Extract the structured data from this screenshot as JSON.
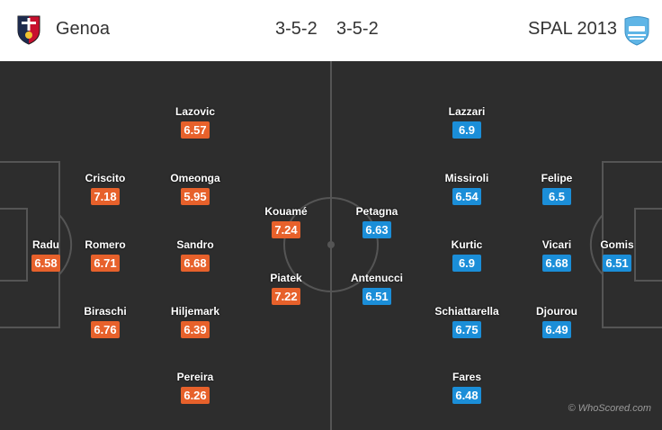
{
  "header": {
    "home_team": "Genoa",
    "home_formation": "3-5-2",
    "away_formation": "3-5-2",
    "away_team": "SPAL 2013",
    "home_crest_icon": "genoa-crest-icon",
    "away_crest_icon": "spal-crest-icon"
  },
  "colors": {
    "home_rating": "#e7612b",
    "away_rating": "#1b8ed8",
    "pitch": "#2d2d2d"
  },
  "home_players": [
    {
      "name": "Radu",
      "rating": "6.58"
    },
    {
      "name": "Criscito",
      "rating": "7.18"
    },
    {
      "name": "Romero",
      "rating": "6.71"
    },
    {
      "name": "Biraschi",
      "rating": "6.76"
    },
    {
      "name": "Lazovic",
      "rating": "6.57"
    },
    {
      "name": "Omeonga",
      "rating": "5.95"
    },
    {
      "name": "Sandro",
      "rating": "6.68"
    },
    {
      "name": "Hiljemark",
      "rating": "6.39"
    },
    {
      "name": "Pereira",
      "rating": "6.26"
    },
    {
      "name": "Kouamé",
      "rating": "7.24"
    },
    {
      "name": "Piatek",
      "rating": "7.22"
    }
  ],
  "away_players": [
    {
      "name": "Gomis",
      "rating": "6.51"
    },
    {
      "name": "Felipe",
      "rating": "6.5"
    },
    {
      "name": "Vicari",
      "rating": "6.68"
    },
    {
      "name": "Djourou",
      "rating": "6.49"
    },
    {
      "name": "Lazzari",
      "rating": "6.9"
    },
    {
      "name": "Missiroli",
      "rating": "6.54"
    },
    {
      "name": "Kurtic",
      "rating": "6.9"
    },
    {
      "name": "Schiattarella",
      "rating": "6.75"
    },
    {
      "name": "Fares",
      "rating": "6.48"
    },
    {
      "name": "Petagna",
      "rating": "6.63"
    },
    {
      "name": "Antenucci",
      "rating": "6.51"
    }
  ],
  "watermark": "© WhoScored.com"
}
